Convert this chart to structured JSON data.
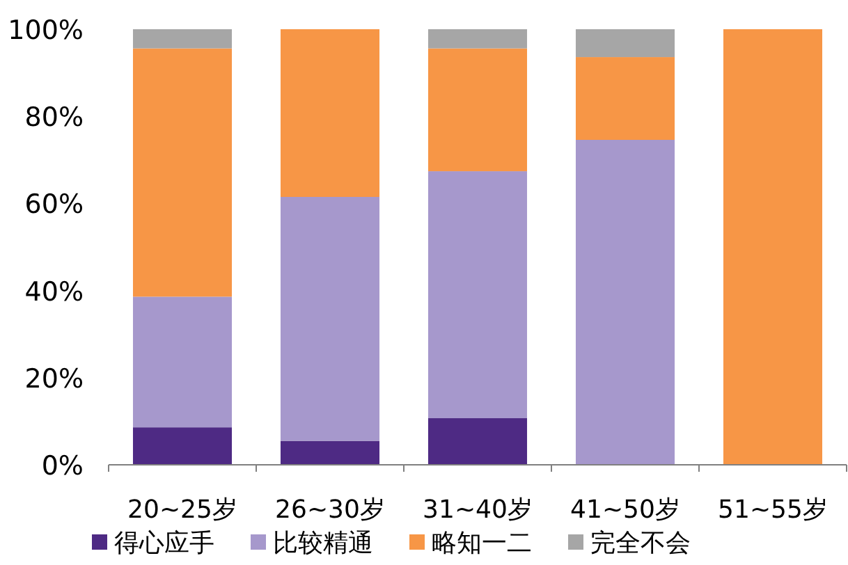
{
  "chart_data": {
    "type": "bar",
    "stacked": true,
    "categories": [
      "20~25岁",
      "26~30岁",
      "31~40岁",
      "41~50岁",
      "51~55岁"
    ],
    "series": [
      {
        "name": "得心应手",
        "color": "#4e2a84",
        "values": [
          8.6,
          5.5,
          10.7,
          0,
          0
        ]
      },
      {
        "name": "比较精通",
        "color": "#a698cc",
        "values": [
          30.0,
          56.0,
          56.7,
          74.6,
          0
        ]
      },
      {
        "name": "略知一二",
        "color": "#f79646",
        "values": [
          57.0,
          38.5,
          28.2,
          19.0,
          100
        ]
      },
      {
        "name": "完全不会",
        "color": "#a6a6a6",
        "values": [
          4.4,
          0,
          4.4,
          6.4,
          0
        ]
      }
    ],
    "ylim": [
      0,
      100
    ],
    "yticks": [
      {
        "value": 0,
        "label": "0%"
      },
      {
        "value": 20,
        "label": "20%"
      },
      {
        "value": 40,
        "label": "40%"
      },
      {
        "value": 60,
        "label": "60%"
      },
      {
        "value": 80,
        "label": "80%"
      },
      {
        "value": 100,
        "label": "100%"
      }
    ],
    "legend": "bottom",
    "grid": false
  }
}
